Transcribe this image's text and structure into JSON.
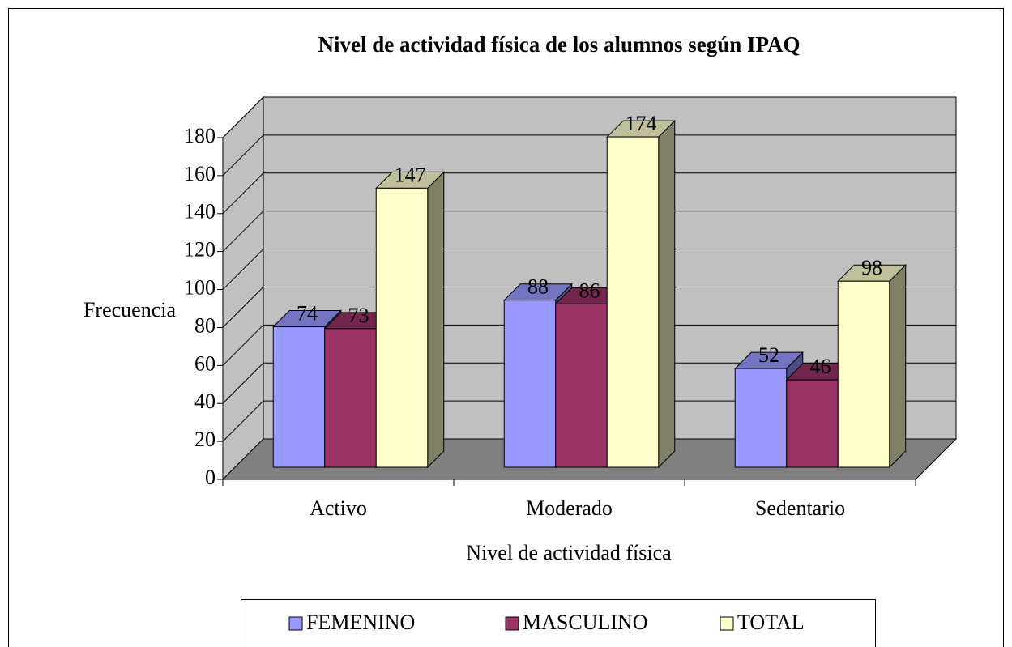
{
  "chart_data": {
    "type": "bar3d",
    "title": "Nivel de actividad física de los alumnos según IPAQ",
    "x_label": "Nivel de actividad física",
    "y_label": "Frecuencia",
    "categories": [
      "Activo",
      "Moderado",
      "Sedentario"
    ],
    "series": [
      {
        "name": "FEMENINO",
        "color": "#9999ff",
        "values": [
          74,
          88,
          52
        ]
      },
      {
        "name": "MASCULINO",
        "color": "#993366",
        "values": [
          73,
          86,
          46
        ]
      },
      {
        "name": "TOTAL",
        "color": "#ffffcc",
        "values": [
          147,
          174,
          98
        ]
      }
    ],
    "ylim": [
      0,
      180
    ],
    "yticks": [
      0,
      20,
      40,
      60,
      80,
      100,
      120,
      140,
      160,
      180
    ],
    "grid": true,
    "legend": "bottom"
  }
}
